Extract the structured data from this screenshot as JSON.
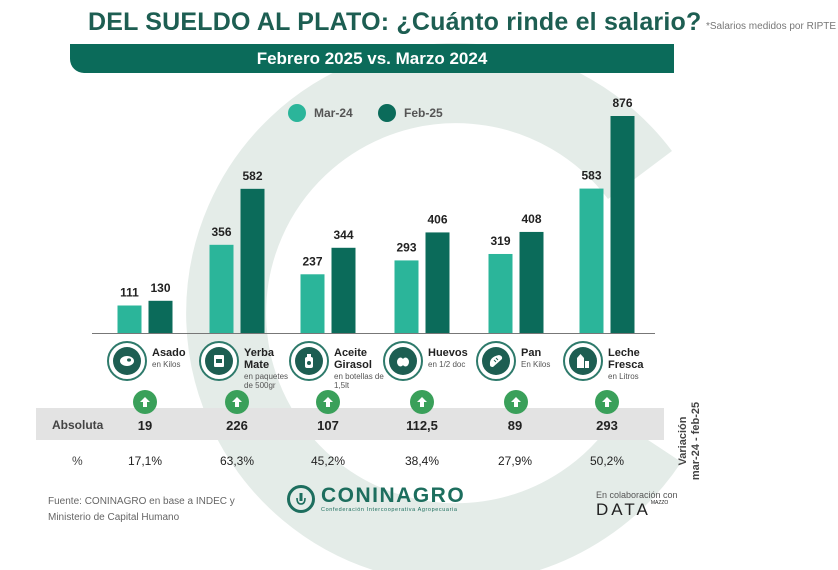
{
  "header": {
    "title": "DEL SUELDO AL PLATO: ¿Cuánto rinde el salario?",
    "note": "*Salarios medidos por RIPTE",
    "banner": "Febrero 2025 vs. Marzo 2024"
  },
  "colors": {
    "mar24": "#2bb59a",
    "feb25": "#0b6b5a",
    "banner": "#0b6b5a",
    "arrow": "#3aa05a",
    "band": "#e3e3e3"
  },
  "chart_data": {
    "type": "bar",
    "categories": [
      "Asado",
      "Yerba Mate",
      "Aceite Girasol",
      "Huevos",
      "Pan",
      "Leche Fresca"
    ],
    "category_units": [
      "en Kilos",
      "en paquetes de 500gr",
      "en botellas de 1,5lt",
      "en 1/2 doc",
      "En Kilos",
      "en Litros"
    ],
    "series": [
      {
        "name": "Mar-24",
        "values": [
          111,
          356,
          237,
          293,
          319,
          583
        ]
      },
      {
        "name": "Feb-25",
        "values": [
          130,
          582,
          344,
          406,
          408,
          876
        ]
      }
    ],
    "ylim": [
      0,
      876
    ],
    "grid": false,
    "legend_position": "top-center"
  },
  "categories_display": [
    {
      "l1": "Asado",
      "l2": "",
      "sub": "en Kilos",
      "icon": "meat-icon"
    },
    {
      "l1": "Yerba",
      "l2": "Mate",
      "sub": "en paquetes de 500gr",
      "icon": "yerba-package-icon"
    },
    {
      "l1": "Aceite",
      "l2": "Girasol",
      "sub": "en botellas de 1,5lt",
      "icon": "oil-bottle-icon"
    },
    {
      "l1": "Huevos",
      "l2": "",
      "sub": "en 1/2 doc",
      "icon": "eggs-icon"
    },
    {
      "l1": "Pan",
      "l2": "",
      "sub": "En Kilos",
      "icon": "bread-icon"
    },
    {
      "l1": "Leche",
      "l2": "Fresca",
      "sub": "en Litros",
      "icon": "milk-icon"
    }
  ],
  "variation": {
    "label_line1": "Variación",
    "label_line2": "mar-24 - feb-25",
    "absolute_label": "Absoluta",
    "percent_label": "%",
    "absolute": [
      "19",
      "226",
      "107",
      "112,5",
      "89",
      "293"
    ],
    "percent": [
      "17,1%",
      "63,3%",
      "45,2%",
      "38,4%",
      "27,9%",
      "50,2%"
    ]
  },
  "footer": {
    "source_line1": "Fuente: CONINAGRO en base a INDEC y",
    "source_line2": "Ministerio de Capital Humano",
    "logo_name": "CONINAGRO",
    "logo_sub": "Confederación Intercooperativa Agropecuaria",
    "collab": "En colaboración con",
    "data_brand": "DATA",
    "data_sup": "MAZZO"
  }
}
